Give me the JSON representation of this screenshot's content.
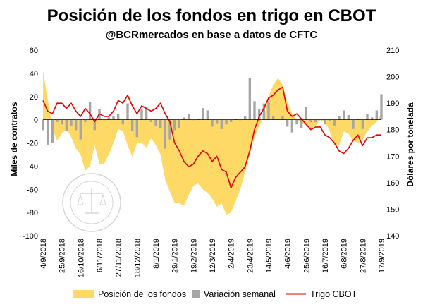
{
  "chart_data": {
    "type": "combo",
    "title": "Posición de los fondos en trigo en CBOT",
    "subtitle": "@BCRmercados en base a datos de CFTC",
    "ylabel_left": "Miles de contratos",
    "ylabel_right": "Dólares por tonelada",
    "ylim_left": [
      -100,
      60
    ],
    "ylim_right": [
      140,
      210
    ],
    "yticks_left": [
      "60",
      "40",
      "20",
      "0",
      "-20",
      "-40",
      "-60",
      "-80",
      "-100"
    ],
    "yticks_right": [
      "210",
      "200",
      "190",
      "180",
      "170",
      "160",
      "150",
      "140"
    ],
    "x_tick_labels": [
      "4/9/2018",
      "25/9/2018",
      "16/10/2018",
      "6/11/2018",
      "27/11/2018",
      "18/12/2018",
      "8/1/2019",
      "29/1/2019",
      "19/2/2019",
      "12/3/2019",
      "2/4/2019",
      "23/4/2019",
      "14/5/2019",
      "4/6/2019",
      "25/6/2019",
      "16/7/2019",
      "6/8/2019",
      "27/8/2019",
      "17/9/2019"
    ],
    "legend_position": "bottom",
    "grid": false,
    "watermark": "BOLSA DE COMERCIO DE ROSARIO",
    "series": [
      {
        "name": "Posición de los fondos",
        "kind": "area",
        "axis": "left",
        "color": "#ffd966",
        "values": [
          42,
          18,
          -8,
          -18,
          -12,
          -8,
          -15,
          -25,
          -30,
          -44,
          -40,
          -22,
          -38,
          -38,
          -30,
          -20,
          -8,
          -10,
          -22,
          -32,
          -20,
          -20,
          -24,
          -16,
          -22,
          -30,
          -52,
          -62,
          -72,
          -72,
          -74,
          -65,
          -57,
          -55,
          -60,
          -63,
          -68,
          -75,
          -72,
          -82,
          -80,
          -70,
          -60,
          -45,
          -30,
          -15,
          -5,
          2,
          20,
          30,
          36,
          30,
          15,
          5,
          0,
          -2,
          -5,
          -8,
          -5,
          0,
          -2,
          -10,
          -22,
          -22,
          -10,
          -12,
          -18,
          -20,
          -17,
          -10,
          -5,
          -2,
          5
        ]
      },
      {
        "name": "Variación semanal",
        "kind": "bar",
        "axis": "left",
        "color": "#a6a6a6",
        "values": [
          -9,
          -22,
          -20,
          -2,
          -4,
          -10,
          -5,
          -9,
          -17,
          -2,
          15,
          -9,
          9,
          0,
          2,
          3,
          5,
          -4,
          14,
          -10,
          -15,
          9,
          11,
          -2,
          -5,
          -7,
          -25,
          -17,
          -9,
          -7,
          2,
          5,
          0,
          1,
          10,
          8,
          -6,
          -3,
          -8,
          -4,
          -2,
          1,
          0,
          3,
          36,
          16,
          9,
          14,
          16,
          3,
          1,
          3,
          -6,
          -11,
          -4,
          -7,
          11,
          -2,
          -2,
          0,
          -4,
          -1,
          -5,
          3,
          8,
          4,
          -8,
          1,
          -8,
          5,
          2,
          8,
          22
        ]
      },
      {
        "name": "Trigo CBOT",
        "kind": "line",
        "axis": "right",
        "color": "#e00000",
        "values": [
          191,
          187,
          186,
          190,
          190,
          188,
          190,
          187,
          185,
          188,
          186,
          183,
          186,
          185,
          185,
          187,
          191,
          190,
          193,
          189,
          186,
          189,
          188,
          187,
          188,
          190,
          186,
          183,
          175,
          172,
          168,
          166,
          167,
          170,
          172,
          171,
          168,
          170,
          165,
          164,
          158,
          162,
          164,
          166,
          172,
          180,
          185,
          188,
          192,
          193,
          195,
          196,
          187,
          185,
          186,
          184,
          182,
          180,
          181,
          181,
          178,
          177,
          175,
          172,
          171,
          173,
          176,
          178,
          174,
          177,
          177,
          178,
          178
        ]
      }
    ]
  }
}
